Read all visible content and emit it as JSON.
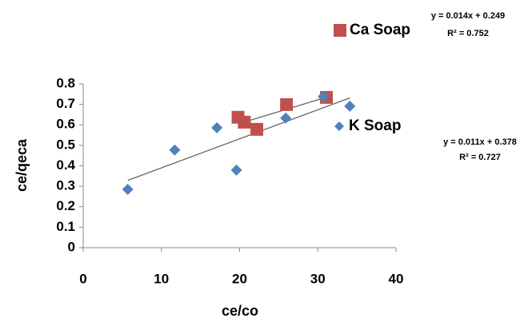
{
  "chart_data": {
    "type": "scatter",
    "x_label": "ce/co",
    "y_label": "ce/qeca",
    "xlim": [
      0,
      40
    ],
    "xticks": [
      0,
      10,
      20,
      30,
      40
    ],
    "ylim": [
      0,
      0.8
    ],
    "yticks": [
      0,
      0.1,
      0.2,
      0.3,
      0.4,
      0.5,
      0.6,
      0.7,
      0.8
    ],
    "grid": false,
    "trendline": true,
    "series": [
      {
        "name": "Ca Soap",
        "color": "#c0504d",
        "marker": "square",
        "x": [
          19.8,
          20.6,
          22.2,
          26.0,
          31.1
        ],
        "values": [
          0.637,
          0.613,
          0.578,
          0.699,
          0.734
        ]
      },
      {
        "name": "K Soap",
        "color": "#4f81bd",
        "marker": "diamond",
        "x": [
          5.7,
          11.7,
          17.1,
          19.6,
          25.9,
          30.7,
          34.1
        ],
        "values": [
          0.285,
          0.477,
          0.586,
          0.379,
          0.633,
          0.738,
          0.691
        ]
      }
    ],
    "annotations": [
      "y = 0.014x + 0.249",
      "R² = 0.752",
      "y = 0.011x + 0.378",
      "R² = 0.727"
    ]
  }
}
